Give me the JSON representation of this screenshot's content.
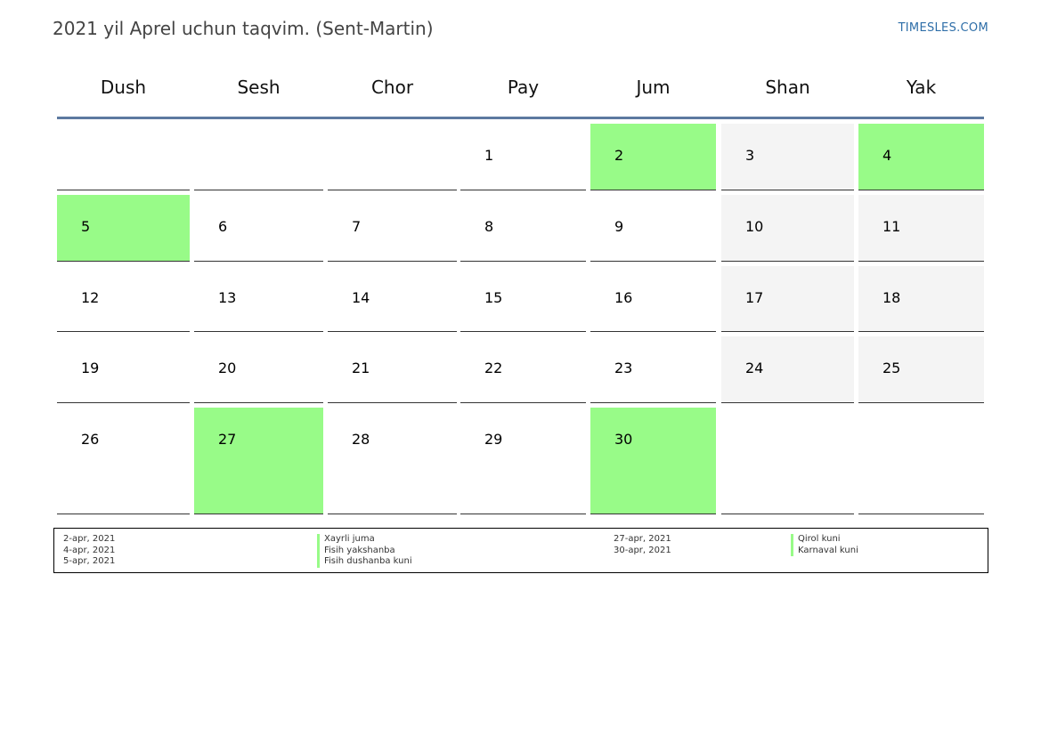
{
  "header": {
    "title": "2021 yil Aprel uchun taqvim. (Sent-Martin)",
    "brand": "TIMESLES.COM"
  },
  "calendar": {
    "weekdays": [
      "Dush",
      "Sesh",
      "Chor",
      "Pay",
      "Jum",
      "Shan",
      "Yak"
    ],
    "weeks": [
      [
        "",
        "",
        "",
        "1",
        "2",
        "3",
        "4"
      ],
      [
        "5",
        "6",
        "7",
        "8",
        "9",
        "10",
        "11"
      ],
      [
        "12",
        "13",
        "14",
        "15",
        "16",
        "17",
        "18"
      ],
      [
        "19",
        "20",
        "21",
        "22",
        "23",
        "24",
        "25"
      ],
      [
        "26",
        "27",
        "28",
        "29",
        "30",
        "",
        ""
      ]
    ],
    "holiday_days": [
      "2",
      "4",
      "5",
      "27",
      "30"
    ],
    "colors": {
      "holiday": "#98fb88",
      "weekend": "#f4f4f4",
      "rule": "#5d7aa0"
    }
  },
  "legend": {
    "left": [
      {
        "date": "2-apr, 2021",
        "name": "Xayrli juma"
      },
      {
        "date": "4-apr, 2021",
        "name": "Fisih yakshanba"
      },
      {
        "date": "5-apr, 2021",
        "name": "Fisih dushanba kuni"
      }
    ],
    "right": [
      {
        "date": "27-apr, 2021",
        "name": "Qirol kuni"
      },
      {
        "date": "30-apr, 2021",
        "name": "Karnaval kuni"
      }
    ]
  }
}
